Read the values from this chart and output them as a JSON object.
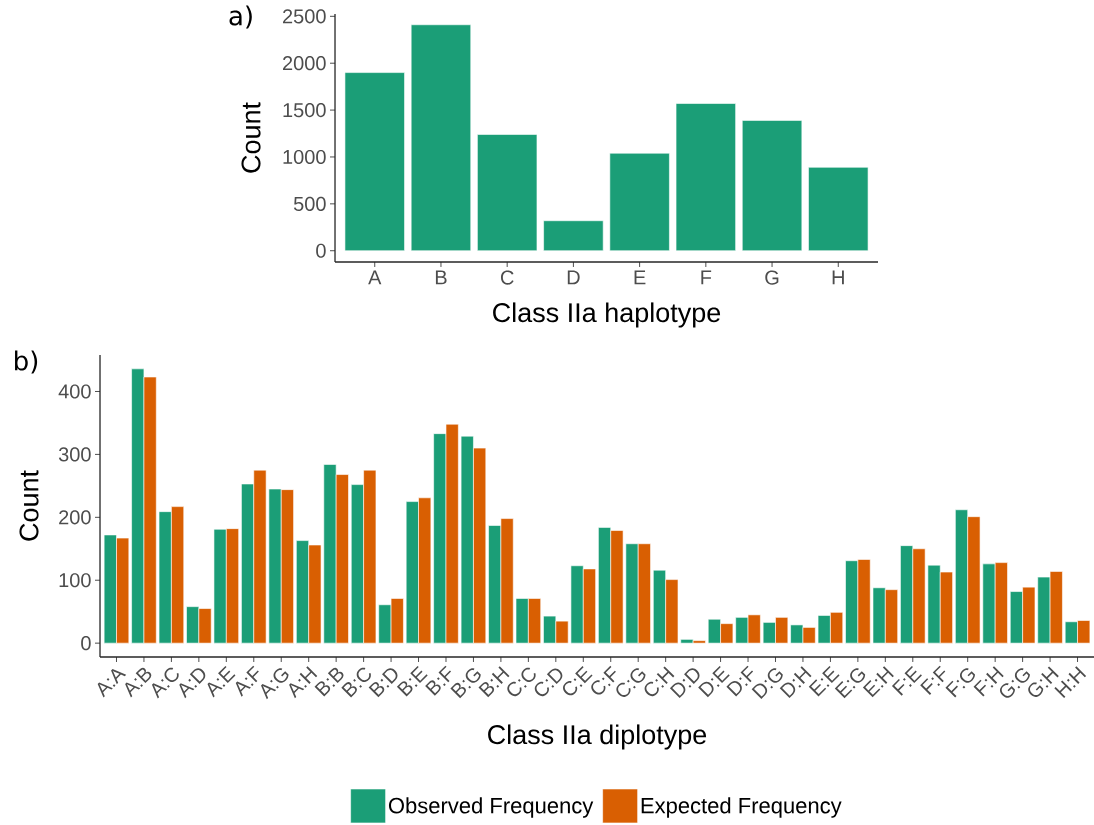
{
  "chart_data": [
    {
      "type": "bar",
      "title": "a)",
      "xlabel": "Class IIa haplotype",
      "ylabel": "Count",
      "categories": [
        "A",
        "B",
        "C",
        "D",
        "E",
        "F",
        "G",
        "H"
      ],
      "values": [
        1900,
        2410,
        1240,
        320,
        1040,
        1570,
        1390,
        890
      ],
      "color": "#1b9e77",
      "ylim": [
        -120,
        2525
      ],
      "yticks": [
        0,
        500,
        1000,
        1500,
        2000,
        2500
      ]
    },
    {
      "type": "bar",
      "title": "b)",
      "xlabel": "Class IIa diplotype",
      "ylabel": "Count",
      "categories": [
        "A:A",
        "A:B",
        "A:C",
        "A:D",
        "A:E",
        "A:F",
        "A:G",
        "A:H",
        "B:B",
        "B:C",
        "B:D",
        "B:E",
        "B:F",
        "B:G",
        "B:H",
        "C:C",
        "C:D",
        "C:E",
        "C:F",
        "C:G",
        "C:H",
        "D:D",
        "D:E",
        "D:F",
        "D:G",
        "D:H",
        "E:E",
        "E:G",
        "E:H",
        "F:E",
        "F:F",
        "F:G",
        "F:H",
        "G:G",
        "G:H",
        "H:H"
      ],
      "series": [
        {
          "name": "Observed Frequency",
          "color": "#1b9e77",
          "values": [
            172,
            436,
            209,
            58,
            181,
            253,
            245,
            163,
            284,
            252,
            61,
            225,
            333,
            329,
            187,
            71,
            43,
            123,
            184,
            158,
            116,
            6,
            38,
            41,
            33,
            29,
            44,
            131,
            88,
            155,
            124,
            212,
            126,
            82,
            105,
            34
          ]
        },
        {
          "name": "Expected Frequency",
          "color": "#d95f02",
          "values": [
            167,
            423,
            217,
            55,
            182,
            275,
            244,
            156,
            268,
            275,
            71,
            231,
            348,
            310,
            198,
            71,
            35,
            118,
            179,
            158,
            101,
            4,
            31,
            45,
            41,
            25,
            49,
            133,
            85,
            150,
            113,
            201,
            128,
            89,
            114,
            36
          ]
        }
      ],
      "ylim": [
        -22,
        458
      ],
      "yticks": [
        0,
        100,
        200,
        300,
        400
      ],
      "legend": "bottom"
    }
  ]
}
